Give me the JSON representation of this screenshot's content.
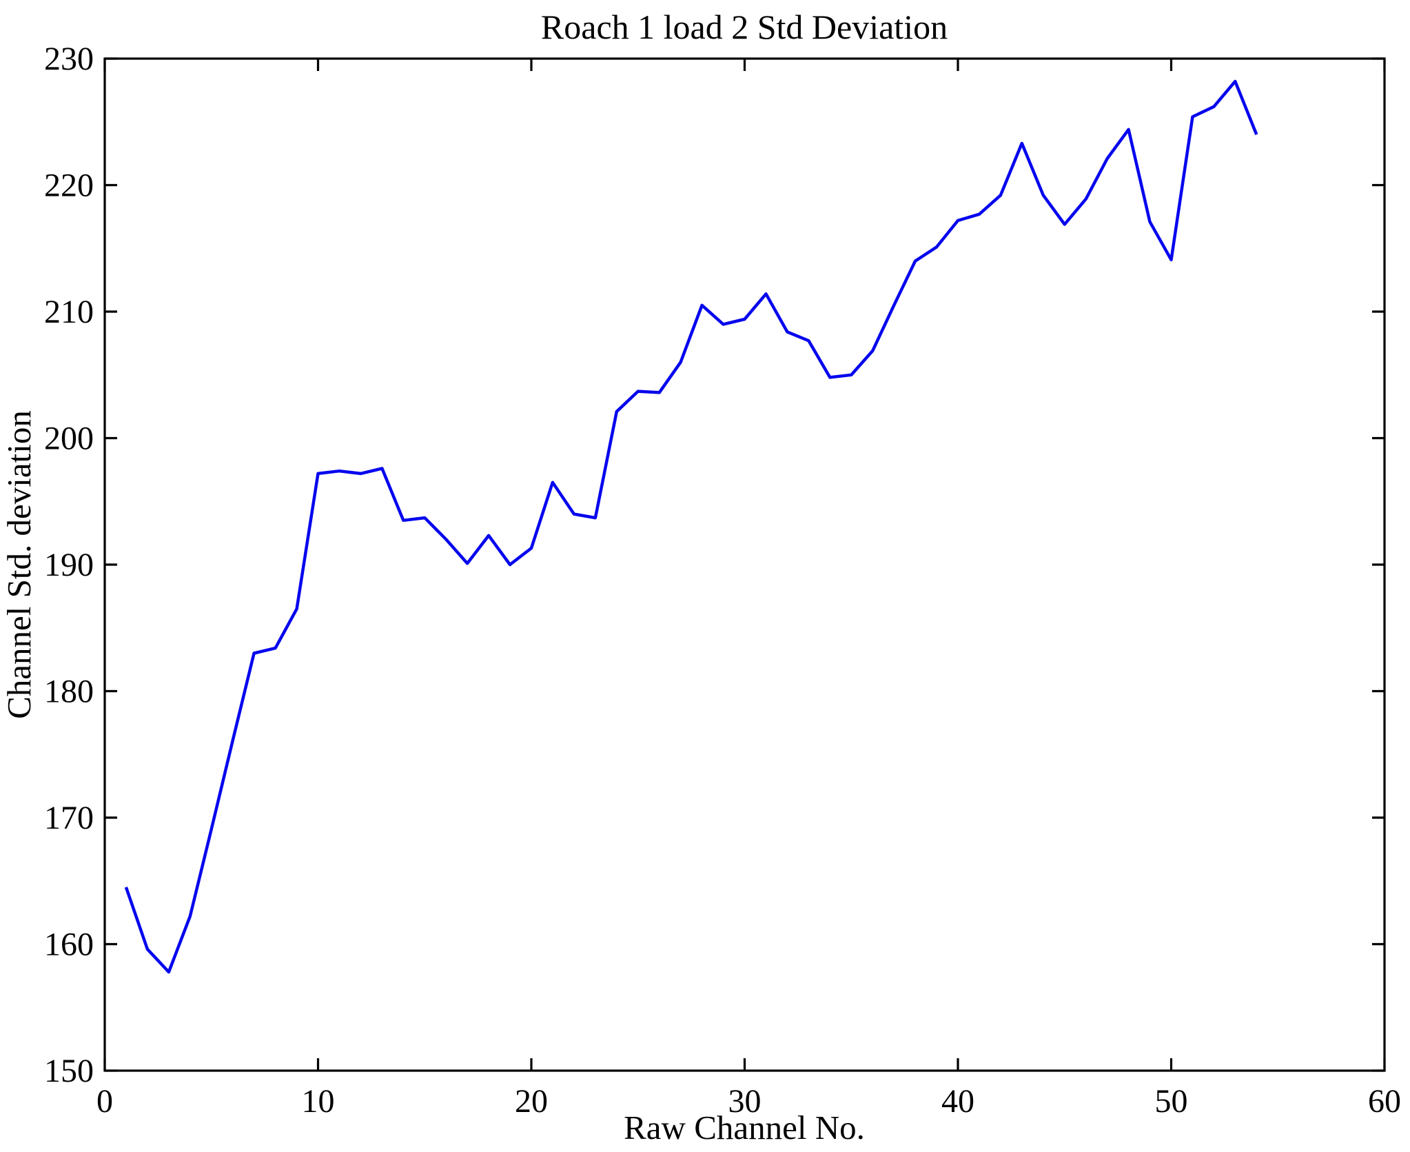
{
  "chart_data": {
    "type": "line",
    "title": "Roach 1 load 2 Std Deviation",
    "xlabel": "Raw Channel No.",
    "ylabel": "Channel Std. deviation",
    "xlim": [
      0,
      60
    ],
    "ylim": [
      150,
      230
    ],
    "xticks": [
      0,
      10,
      20,
      30,
      40,
      50,
      60
    ],
    "yticks": [
      150,
      160,
      170,
      180,
      190,
      200,
      210,
      220,
      230
    ],
    "grid": false,
    "legend": "none",
    "box": true,
    "line_color": "#0606ee",
    "axis_color": "#000000",
    "background_color": "#ffffff",
    "series": [
      {
        "name": "Channel Std. deviation",
        "x": [
          1,
          2,
          3,
          4,
          5,
          6,
          7,
          8,
          9,
          10,
          11,
          12,
          13,
          14,
          15,
          16,
          17,
          18,
          19,
          20,
          21,
          22,
          23,
          24,
          25,
          26,
          27,
          28,
          29,
          30,
          31,
          32,
          33,
          34,
          35,
          36,
          37,
          38,
          39,
          40,
          41,
          42,
          43,
          44,
          45,
          46,
          47,
          48,
          49,
          50,
          51,
          52,
          53,
          54
        ],
        "values": [
          164.5,
          159.6,
          157.8,
          162.2,
          169.1,
          176.1,
          183.0,
          183.4,
          186.5,
          197.2,
          197.4,
          197.2,
          197.6,
          193.5,
          193.7,
          192.0,
          190.1,
          192.3,
          190.0,
          191.3,
          196.5,
          194.0,
          193.7,
          202.1,
          203.7,
          203.6,
          206.0,
          210.5,
          209.0,
          209.4,
          211.4,
          208.4,
          207.7,
          204.8,
          205.0,
          206.9,
          210.5,
          214.0,
          215.1,
          217.2,
          217.7,
          219.2,
          223.3,
          219.2,
          216.9,
          218.9,
          222.1,
          224.4,
          217.1,
          214.1,
          225.4,
          226.2,
          228.2,
          224.0
        ]
      }
    ]
  }
}
